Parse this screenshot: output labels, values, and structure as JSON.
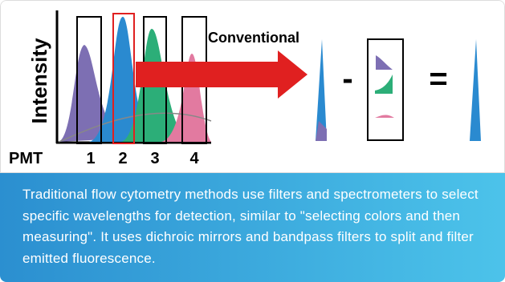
{
  "figure": {
    "y_axis_label": "Intensity",
    "arrow_label": "Conventional",
    "detector_label": "PMT",
    "channels": [
      "1",
      "2",
      "3",
      "4"
    ],
    "minus_sign": "-",
    "equals_sign": "="
  },
  "caption": "Traditional flow cytometry methods use filters and spectrometers to select specific wavelengths for detection, similar to \"selecting colors and then measuring\". It uses dichroic mirrors and bandpass filters to split and filter emitted fluorescence."
}
